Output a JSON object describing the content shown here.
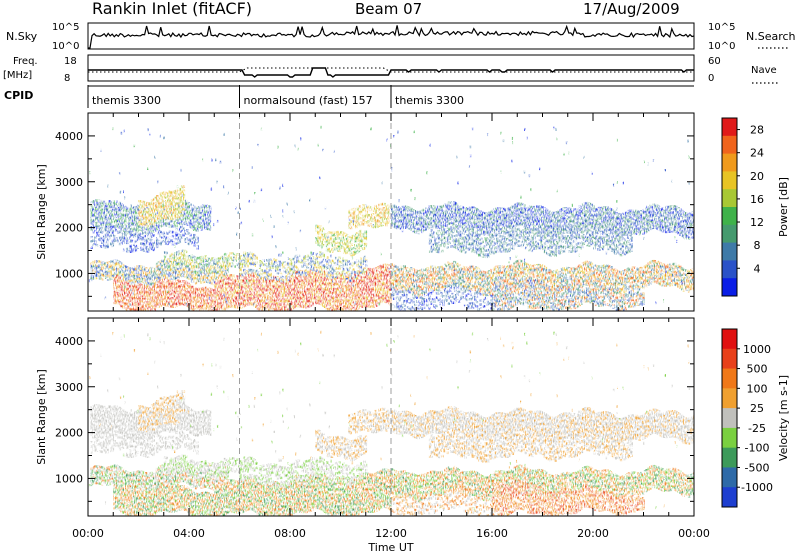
{
  "header": {
    "station": "Rankin Inlet (fitACF)",
    "beam": "Beam 07",
    "date": "17/Aug/2009"
  },
  "strip_labels": {
    "nsky": "N.Sky",
    "nsearch": "N.Search",
    "freq": "Freq.",
    "freq_unit": "[MHz]",
    "nave": "Nave",
    "cpid": "CPID",
    "nsky_ticks": [
      "10^5",
      "10^0"
    ],
    "nsearch_ticks": [
      "10^5",
      "10^0"
    ],
    "freq_ticks": [
      "18",
      "8"
    ],
    "nave_ticks": [
      "60",
      "0"
    ]
  },
  "cpid_segments": [
    {
      "label": "themis 3300",
      "start_h": 0,
      "end_h": 6
    },
    {
      "label": "normalsound (fast) 157",
      "start_h": 6,
      "end_h": 12
    },
    {
      "label": "themis 3300",
      "start_h": 12,
      "end_h": 24
    }
  ],
  "chart_data": [
    {
      "type": "heatmap",
      "name": "power",
      "ylabel": "Slant Range [km]",
      "xlabel": "",
      "x_range_hours": [
        0,
        24
      ],
      "ylim": [
        180,
        4500
      ],
      "y_ticks": [
        "1000",
        "2000",
        "3000",
        "4000"
      ],
      "x_ticks": [
        "00:00",
        "04:00",
        "08:00",
        "12:00",
        "16:00",
        "20:00",
        "00:00"
      ],
      "colorbar": {
        "label": "Power [dB]",
        "ticks": [
          "4",
          "8",
          "12",
          "16",
          "20",
          "24",
          "28"
        ],
        "colors": [
          "#0a1ee6",
          "#2a52c8",
          "#3e7aa8",
          "#459a6e",
          "#3fb24a",
          "#a8c834",
          "#e8c424",
          "#f09a1c",
          "#f0641c",
          "#e01a1a"
        ]
      }
    },
    {
      "type": "heatmap",
      "name": "velocity",
      "ylabel": "Slant Range [km]",
      "xlabel": "Time UT",
      "x_range_hours": [
        0,
        24
      ],
      "ylim": [
        180,
        4500
      ],
      "y_ticks": [
        "1000",
        "2000",
        "3000",
        "4000"
      ],
      "x_ticks": [
        "00:00",
        "04:00",
        "08:00",
        "12:00",
        "16:00",
        "20:00",
        "00:00"
      ],
      "colorbar": {
        "label": "Velocity [m s-1]",
        "ticks": [
          "1000",
          "500",
          "100",
          "25",
          "-25",
          "-100",
          "-500",
          "-1000"
        ],
        "colors": [
          "#1e3fd0",
          "#2e6aa8",
          "#3c9a5a",
          "#7ad040",
          "#c0c0bc",
          "#f0a030",
          "#f07818",
          "#e8401a",
          "#e01010"
        ]
      }
    }
  ]
}
